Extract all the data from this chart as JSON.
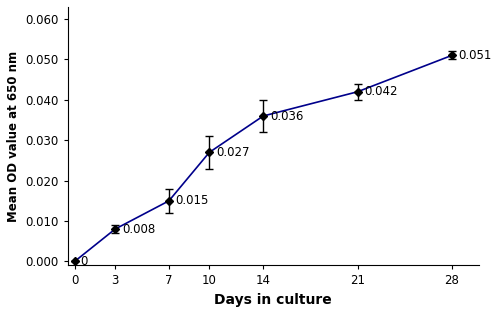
{
  "x": [
    0,
    3,
    7,
    10,
    14,
    21,
    28
  ],
  "y": [
    0.0,
    0.008,
    0.015,
    0.027,
    0.036,
    0.042,
    0.051
  ],
  "yerr": [
    0.0,
    0.001,
    0.003,
    0.004,
    0.004,
    0.002,
    0.001
  ],
  "labels": [
    "0",
    "0.008",
    "0.015",
    "0.027",
    "0.036",
    "0.042",
    "0.051"
  ],
  "label_offsets_x": [
    0.4,
    0.5,
    0.5,
    0.5,
    0.5,
    0.5,
    0.5
  ],
  "label_offsets_y": [
    0.0,
    0.0,
    0.0,
    0.0,
    0.0,
    0.0,
    0.0
  ],
  "line_color": "#00008B",
  "marker_color": "#000000",
  "background_color": "#ffffff",
  "xlabel": "Days in culture",
  "ylabel": "Mean OD value at 650 nm",
  "xlim": [
    -0.5,
    30
  ],
  "ylim": [
    -0.001,
    0.063
  ],
  "xticks": [
    0,
    3,
    7,
    10,
    14,
    21,
    28
  ],
  "yticks": [
    0.0,
    0.01,
    0.02,
    0.03,
    0.04,
    0.05,
    0.06
  ],
  "ytick_labels": [
    "0.000",
    "0.010",
    "0.020",
    "0.030",
    "0.040",
    "0.050",
    "0.060"
  ],
  "figsize": [
    5.0,
    3.14
  ],
  "dpi": 100
}
